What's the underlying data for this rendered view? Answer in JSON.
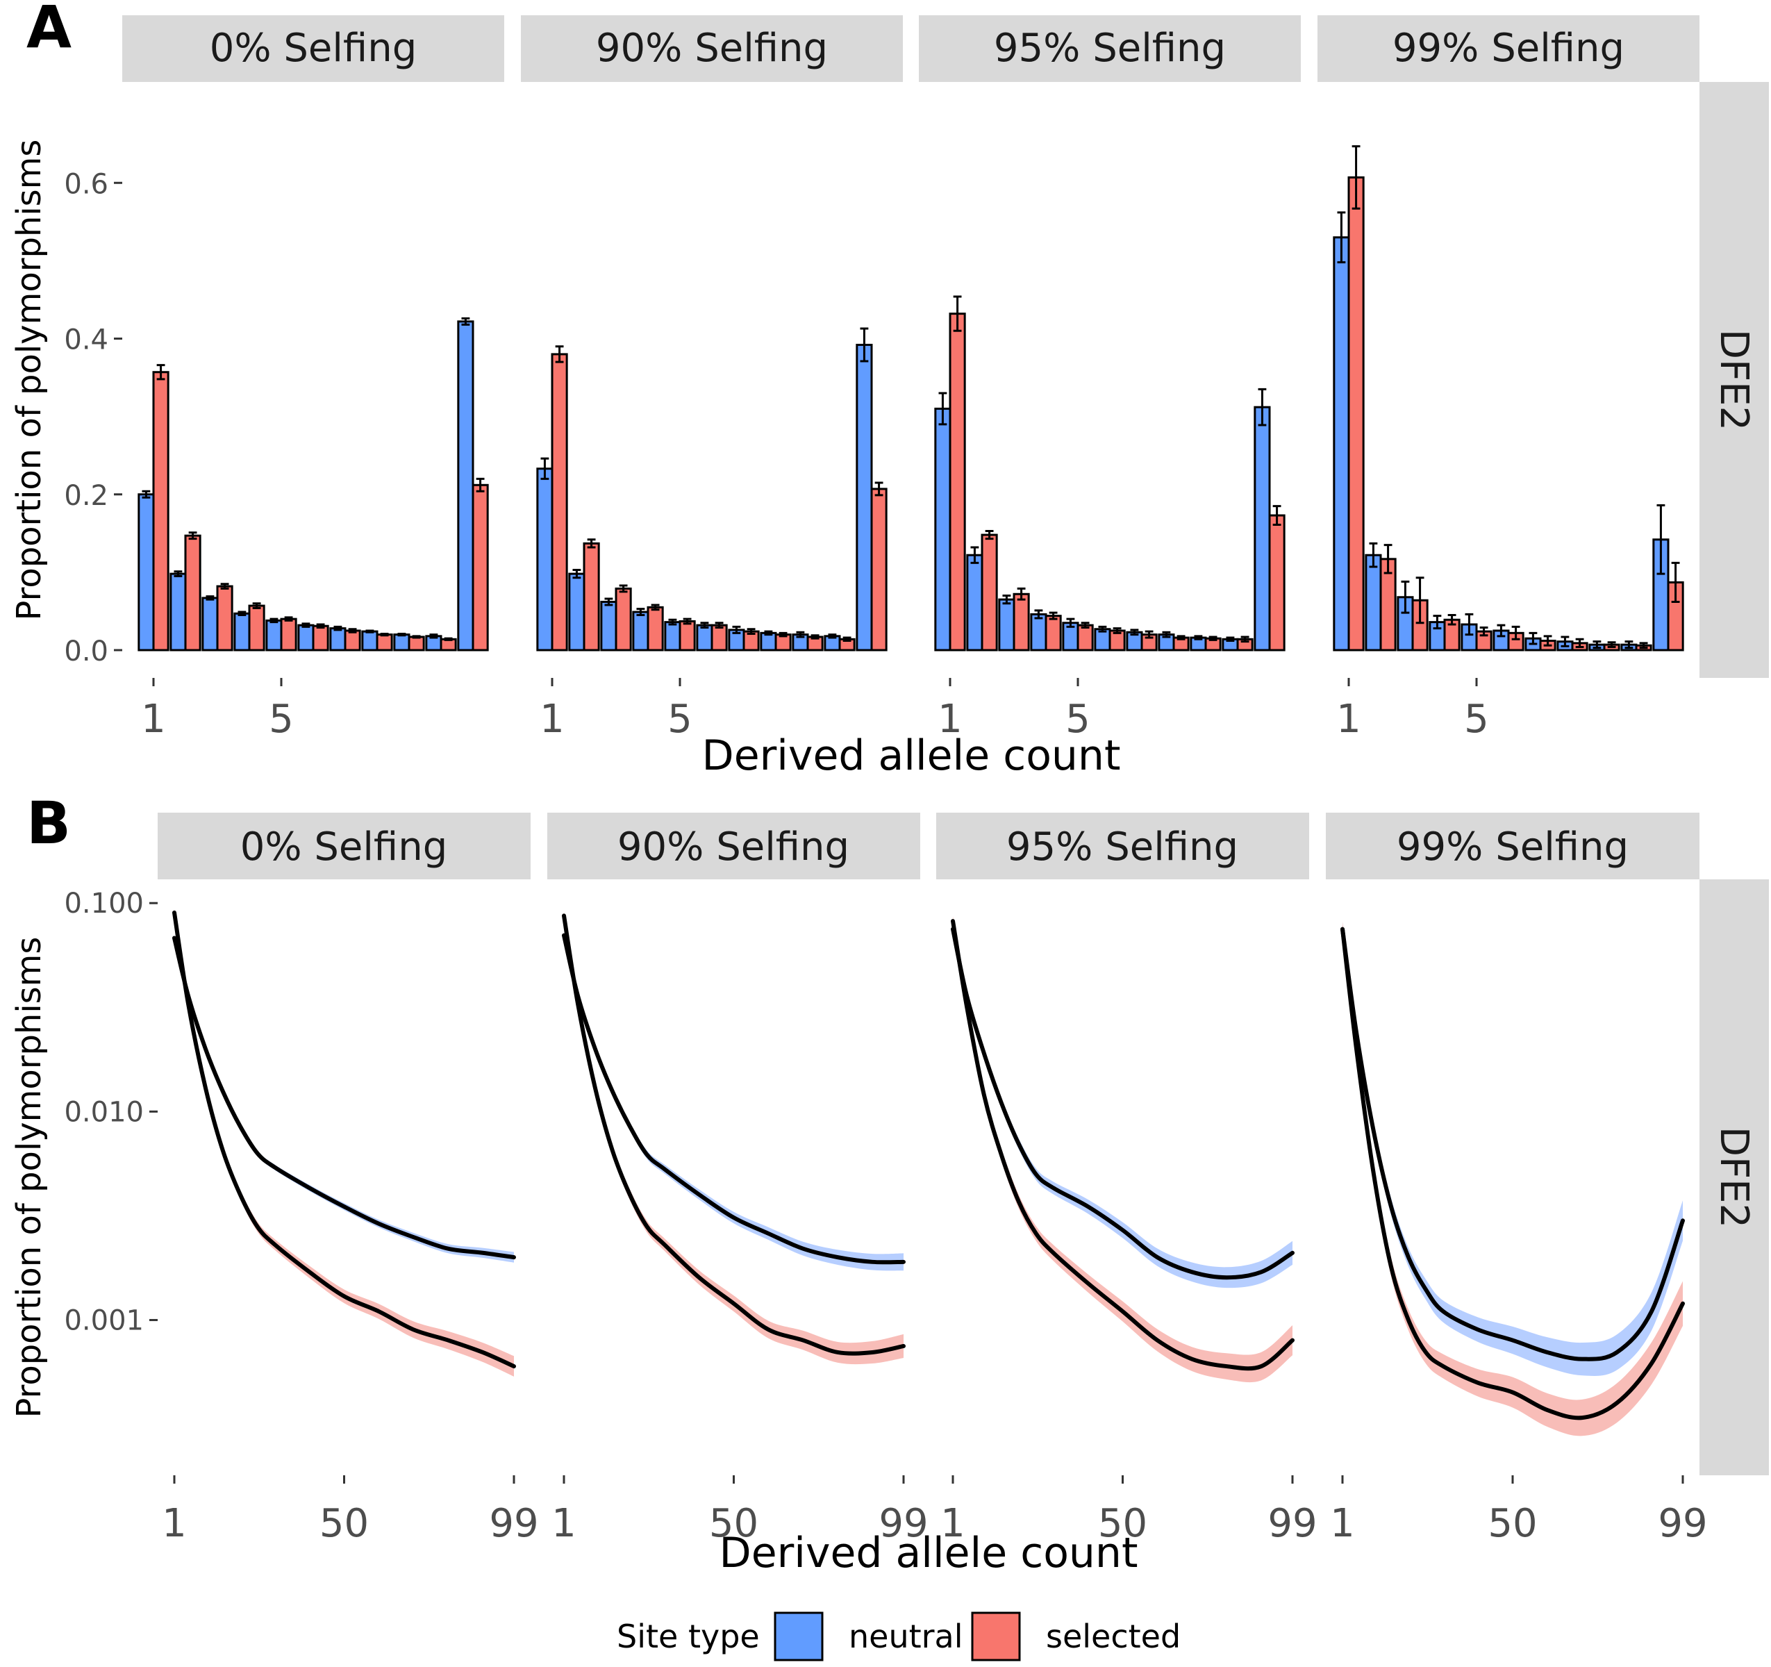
{
  "colors": {
    "neutral": "#619CFF",
    "selected": "#F8766D",
    "neutral_band": "#A9C6FF",
    "selected_band": "#F7B1AC",
    "strip": "#D9D9D9",
    "axis_text": "#4D4D4D"
  },
  "legend": {
    "title": "Site type",
    "items": [
      {
        "label": "neutral",
        "color": "#619CFF"
      },
      {
        "label": "selected",
        "color": "#F8766D"
      }
    ]
  },
  "chart_data": [
    {
      "panel_label": "A",
      "type": "bar",
      "ylabel": "Proportion of polymorphisms",
      "xlabel": "Derived allele count",
      "facet_right": "DFE2",
      "facets": [
        "0% Selfing",
        "90% Selfing",
        "95% Selfing",
        "99% Selfing"
      ],
      "ylim": [
        0,
        0.66
      ],
      "yticks": [
        0.0,
        0.2,
        0.4,
        0.6
      ],
      "ytick_labels": [
        "0.0",
        "0.2",
        "0.4",
        "0.6"
      ],
      "x_categories": [
        1,
        2,
        3,
        4,
        5,
        6,
        7,
        8,
        9,
        10,
        11
      ],
      "xticks": [
        1,
        5
      ],
      "xtick_labels": [
        "1",
        "5"
      ],
      "grid": false,
      "series": [
        {
          "name": "neutral",
          "panels": [
            {
              "values": [
                0.2,
                0.098,
                0.067,
                0.047,
                0.038,
                0.032,
                0.028,
                0.024,
                0.02,
                0.018,
                0.422
              ],
              "errors": [
                0.004,
                0.003,
                0.002,
                0.002,
                0.002,
                0.002,
                0.002,
                0.001,
                0.001,
                0.002,
                0.004
              ]
            },
            {
              "values": [
                0.233,
                0.098,
                0.062,
                0.049,
                0.036,
                0.032,
                0.026,
                0.022,
                0.02,
                0.018,
                0.392
              ],
              "errors": [
                0.013,
                0.005,
                0.004,
                0.004,
                0.003,
                0.003,
                0.004,
                0.002,
                0.003,
                0.002,
                0.021
              ]
            },
            {
              "values": [
                0.31,
                0.122,
                0.065,
                0.046,
                0.035,
                0.027,
                0.023,
                0.02,
                0.016,
                0.014,
                0.312
              ],
              "errors": [
                0.02,
                0.01,
                0.005,
                0.005,
                0.005,
                0.003,
                0.003,
                0.003,
                0.002,
                0.002,
                0.023
              ]
            },
            {
              "values": [
                0.53,
                0.122,
                0.068,
                0.036,
                0.033,
                0.025,
                0.015,
                0.011,
                0.007,
                0.007,
                0.142
              ],
              "errors": [
                0.032,
                0.015,
                0.02,
                0.008,
                0.013,
                0.007,
                0.007,
                0.006,
                0.004,
                0.004,
                0.044
              ]
            }
          ]
        },
        {
          "name": "selected",
          "panels": [
            {
              "values": [
                0.357,
                0.147,
                0.082,
                0.057,
                0.04,
                0.031,
                0.025,
                0.02,
                0.017,
                0.014,
                0.212
              ],
              "errors": [
                0.009,
                0.004,
                0.003,
                0.003,
                0.002,
                0.002,
                0.002,
                0.001,
                0.001,
                0.001,
                0.008
              ]
            },
            {
              "values": [
                0.38,
                0.137,
                0.079,
                0.055,
                0.037,
                0.032,
                0.024,
                0.02,
                0.017,
                0.014,
                0.207
              ],
              "errors": [
                0.01,
                0.005,
                0.004,
                0.003,
                0.003,
                0.003,
                0.003,
                0.002,
                0.002,
                0.002,
                0.008
              ]
            },
            {
              "values": [
                0.432,
                0.148,
                0.072,
                0.044,
                0.032,
                0.025,
                0.02,
                0.016,
                0.015,
                0.014,
                0.173
              ],
              "errors": [
                0.022,
                0.005,
                0.007,
                0.004,
                0.003,
                0.003,
                0.004,
                0.002,
                0.002,
                0.003,
                0.012
              ]
            },
            {
              "values": [
                0.607,
                0.117,
                0.064,
                0.039,
                0.024,
                0.022,
                0.012,
                0.009,
                0.007,
                0.006,
                0.087
              ],
              "errors": [
                0.04,
                0.018,
                0.029,
                0.006,
                0.005,
                0.008,
                0.006,
                0.005,
                0.003,
                0.003,
                0.025
              ]
            }
          ]
        }
      ]
    },
    {
      "panel_label": "B",
      "type": "line",
      "ylabel": "Proportion of polymorphisms",
      "xlabel": "Derived allele count",
      "facet_right": "DFE2",
      "facets": [
        "0% Selfing",
        "90% Selfing",
        "95% Selfing",
        "99% Selfing"
      ],
      "yscale": "log",
      "ylim": [
        0.00018,
        0.13
      ],
      "yticks": [
        0.1,
        0.01,
        0.001
      ],
      "ytick_labels": [
        "0.100",
        "0.010",
        "0.001"
      ],
      "xlim": [
        1,
        99
      ],
      "xticks": [
        1,
        50,
        99
      ],
      "xtick_labels": [
        "1",
        "50",
        "99"
      ],
      "grid": false,
      "series": [
        {
          "name": "neutral",
          "panels": [
            {
              "x": [
                1,
                5,
                10,
                15,
                20,
                25,
                30,
                40,
                50,
                60,
                70,
                80,
                90,
                99
              ],
              "y": [
                0.068,
                0.036,
                0.02,
                0.0125,
                0.0085,
                0.0063,
                0.0054,
                0.0043,
                0.0035,
                0.0029,
                0.0025,
                0.0022,
                0.0021,
                0.002
              ],
              "band": 0.06
            },
            {
              "x": [
                1,
                5,
                10,
                15,
                20,
                25,
                30,
                40,
                50,
                60,
                70,
                80,
                90,
                99
              ],
              "y": [
                0.07,
                0.036,
                0.02,
                0.0125,
                0.0085,
                0.0062,
                0.0053,
                0.004,
                0.0031,
                0.0026,
                0.0022,
                0.002,
                0.0019,
                0.0019
              ],
              "band": 0.1
            },
            {
              "x": [
                1,
                5,
                10,
                15,
                20,
                25,
                30,
                40,
                50,
                60,
                70,
                80,
                90,
                99
              ],
              "y": [
                0.075,
                0.036,
                0.019,
                0.011,
                0.007,
                0.005,
                0.0043,
                0.0035,
                0.0027,
                0.002,
                0.0017,
                0.0016,
                0.0017,
                0.0021
              ],
              "band": 0.14
            },
            {
              "x": [
                1,
                5,
                10,
                15,
                20,
                25,
                30,
                40,
                50,
                60,
                70,
                80,
                90,
                99
              ],
              "y": [
                0.075,
                0.024,
                0.008,
                0.0035,
                0.002,
                0.0014,
                0.0011,
                0.0009,
                0.0008,
                0.0007,
                0.00065,
                0.0007,
                0.0011,
                0.003
              ],
              "band": 0.25
            }
          ]
        },
        {
          "name": "selected",
          "panels": [
            {
              "x": [
                1,
                5,
                10,
                15,
                20,
                25,
                30,
                40,
                50,
                60,
                70,
                80,
                90,
                99
              ],
              "y": [
                0.09,
                0.033,
                0.013,
                0.0065,
                0.004,
                0.0028,
                0.0023,
                0.0017,
                0.0013,
                0.0011,
                0.0009,
                0.0008,
                0.0007,
                0.0006
              ],
              "band": 0.12
            },
            {
              "x": [
                1,
                5,
                10,
                15,
                20,
                25,
                30,
                40,
                50,
                60,
                70,
                80,
                90,
                99
              ],
              "y": [
                0.087,
                0.033,
                0.013,
                0.0065,
                0.004,
                0.0028,
                0.0023,
                0.0016,
                0.0012,
                0.0009,
                0.0008,
                0.0007,
                0.0007,
                0.00075
              ],
              "band": 0.14
            },
            {
              "x": [
                1,
                5,
                10,
                15,
                20,
                25,
                30,
                40,
                50,
                60,
                70,
                80,
                90,
                99
              ],
              "y": [
                0.082,
                0.032,
                0.012,
                0.0062,
                0.0037,
                0.0026,
                0.0021,
                0.0015,
                0.0011,
                0.0008,
                0.00065,
                0.0006,
                0.0006,
                0.0008
              ],
              "band": 0.18
            },
            {
              "x": [
                1,
                5,
                10,
                15,
                20,
                25,
                30,
                40,
                50,
                60,
                70,
                80,
                90,
                99
              ],
              "y": [
                0.075,
                0.02,
                0.005,
                0.0018,
                0.001,
                0.0007,
                0.0006,
                0.0005,
                0.00045,
                0.00037,
                0.00034,
                0.0004,
                0.00062,
                0.0012
              ],
              "band": 0.28
            }
          ]
        }
      ]
    }
  ]
}
